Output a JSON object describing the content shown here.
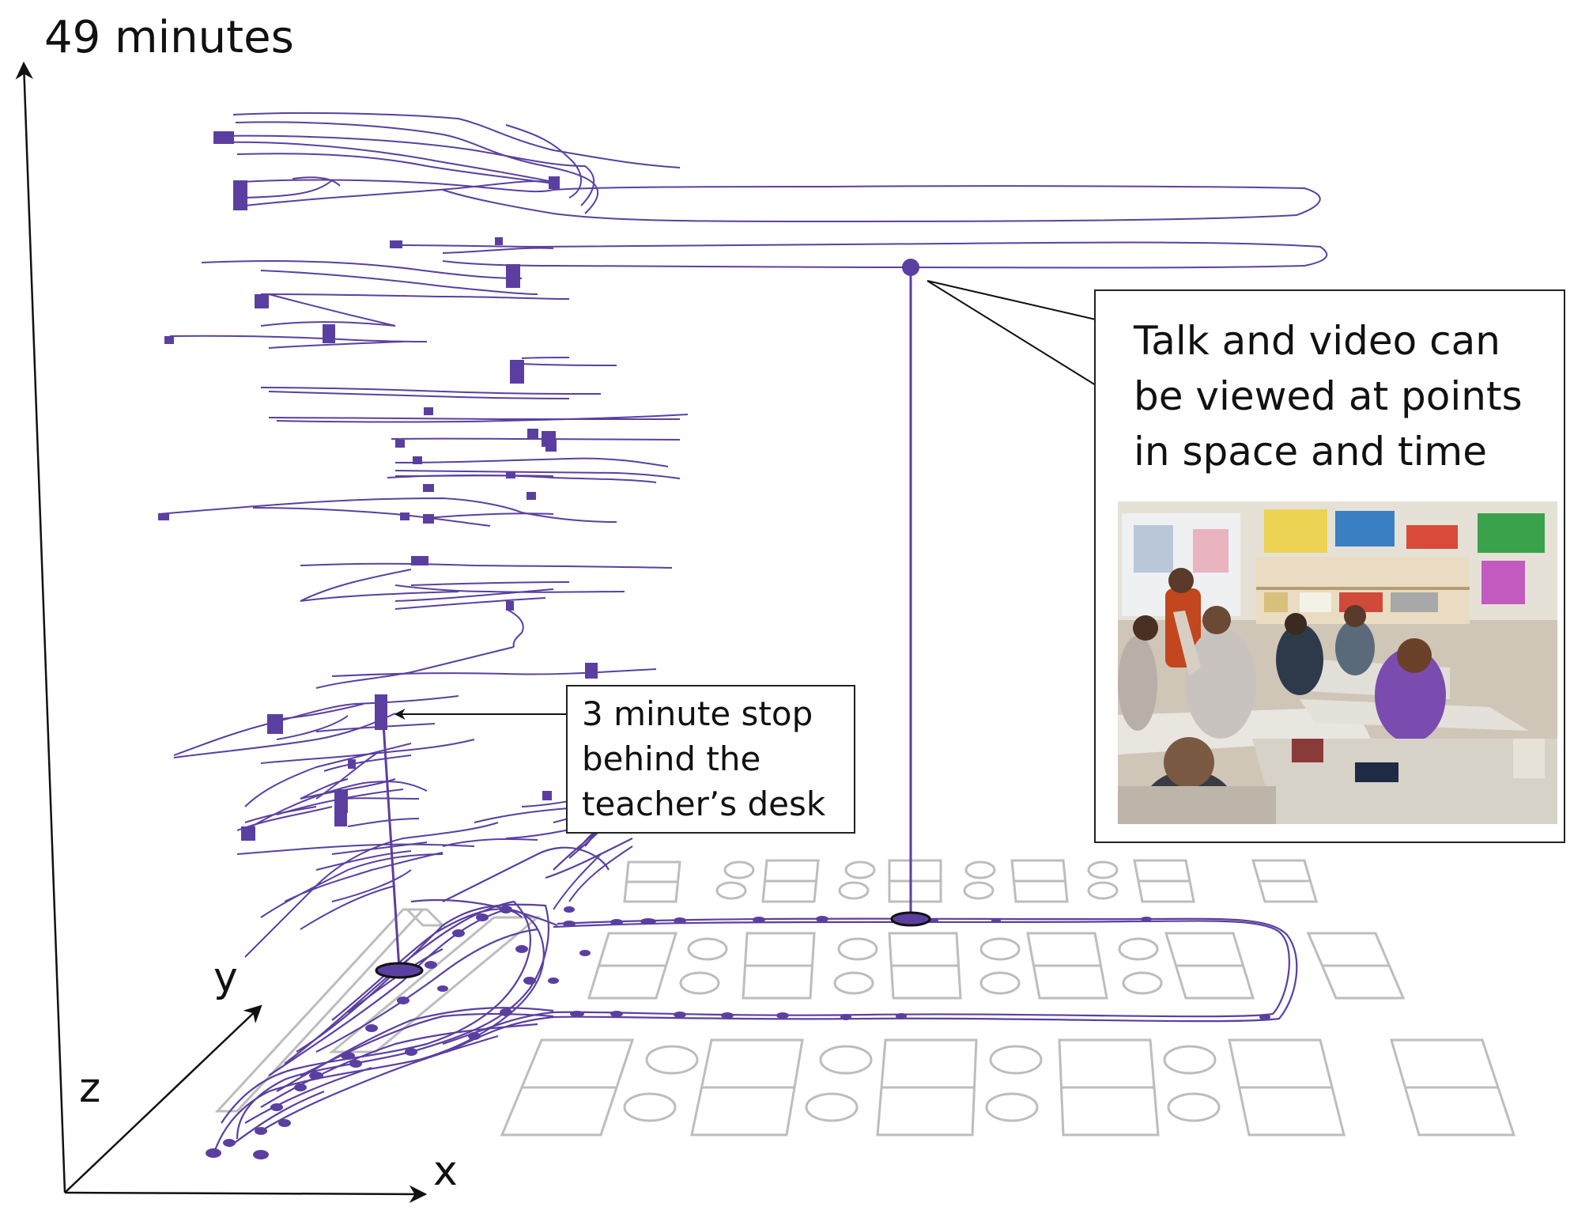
{
  "title": "49 minutes",
  "axes": {
    "x": "x",
    "y": "y",
    "z": "z"
  },
  "annotations": {
    "stop": {
      "lines": [
        "3 minute stop",
        "behind the",
        "teacher’s desk"
      ]
    },
    "talk": {
      "lines": [
        "Talk and video can",
        "be viewed at points",
        "in space and time"
      ]
    }
  },
  "colors": {
    "trajectory": "#5b3fa0",
    "floorplan": "#bdbdbd",
    "axis": "#111111",
    "text": "#111111"
  },
  "icons": [
    "video-still-classroom",
    "up-arrow",
    "right-arrow",
    "diagonal-arrow"
  ]
}
